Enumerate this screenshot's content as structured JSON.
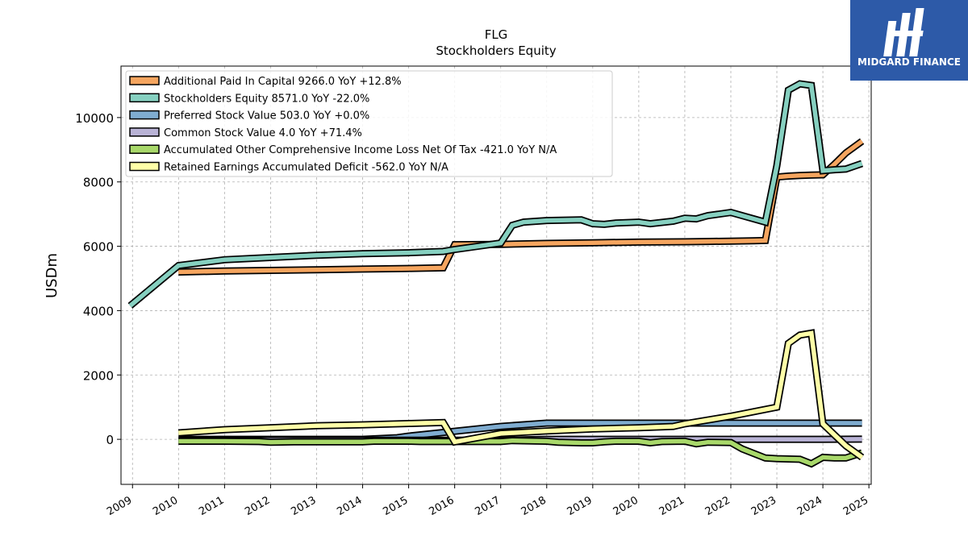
{
  "brand": {
    "name": "MIDGARD FINANCE",
    "color": "#2d5aa8"
  },
  "chart_data": {
    "type": "line",
    "title": "FLG",
    "subtitle": "Stockholders  Equity",
    "ylabel": "USDm",
    "xlabel": "",
    "ylim": [
      -1400,
      11600
    ],
    "xlim": [
      2008.75,
      2025.05
    ],
    "yticks": [
      0,
      2000,
      4000,
      6000,
      8000,
      10000
    ],
    "xticks": [
      "2009",
      "2010",
      "2011",
      "2012",
      "2013",
      "2014",
      "2015",
      "2016",
      "2017",
      "2018",
      "2019",
      "2020",
      "2021",
      "2022",
      "2023",
      "2024",
      "2025"
    ],
    "grid": true,
    "legend_position": "top-left",
    "series": [
      {
        "name": "Additional Paid In Capital  9266.0 YoY +12.8%",
        "color": "#f5a55f",
        "points": [
          [
            2010.0,
            5200
          ],
          [
            2011.0,
            5230
          ],
          [
            2012.0,
            5250
          ],
          [
            2013.0,
            5270
          ],
          [
            2014.0,
            5290
          ],
          [
            2015.0,
            5310
          ],
          [
            2015.75,
            5330
          ],
          [
            2016.0,
            6050
          ],
          [
            2017.0,
            6060
          ],
          [
            2018.0,
            6090
          ],
          [
            2019.0,
            6110
          ],
          [
            2020.0,
            6130
          ],
          [
            2021.0,
            6140
          ],
          [
            2021.5,
            6150
          ],
          [
            2022.0,
            6160
          ],
          [
            2022.5,
            6170
          ],
          [
            2022.75,
            6180
          ],
          [
            2023.0,
            8150
          ],
          [
            2023.25,
            8180
          ],
          [
            2023.5,
            8200
          ],
          [
            2023.75,
            8210
          ],
          [
            2024.0,
            8220
          ],
          [
            2024.25,
            8550
          ],
          [
            2024.5,
            8900
          ],
          [
            2024.85,
            9266
          ]
        ]
      },
      {
        "name": "Stockholders Equity  8571.0 YoY -22.0%",
        "color": "#86d0c0",
        "points": [
          [
            2008.95,
            4150
          ],
          [
            2010.0,
            5400
          ],
          [
            2011.0,
            5580
          ],
          [
            2012.0,
            5650
          ],
          [
            2013.0,
            5720
          ],
          [
            2014.0,
            5770
          ],
          [
            2015.0,
            5800
          ],
          [
            2015.75,
            5840
          ],
          [
            2016.0,
            5900
          ],
          [
            2016.5,
            6000
          ],
          [
            2017.0,
            6100
          ],
          [
            2017.25,
            6650
          ],
          [
            2017.5,
            6750
          ],
          [
            2018.0,
            6800
          ],
          [
            2018.75,
            6820
          ],
          [
            2019.0,
            6700
          ],
          [
            2019.25,
            6680
          ],
          [
            2019.5,
            6720
          ],
          [
            2020.0,
            6750
          ],
          [
            2020.25,
            6700
          ],
          [
            2020.75,
            6780
          ],
          [
            2021.0,
            6870
          ],
          [
            2021.25,
            6850
          ],
          [
            2021.5,
            6950
          ],
          [
            2022.0,
            7050
          ],
          [
            2022.25,
            6950
          ],
          [
            2022.75,
            6750
          ],
          [
            2023.0,
            8500
          ],
          [
            2023.25,
            10850
          ],
          [
            2023.5,
            11050
          ],
          [
            2023.75,
            11000
          ],
          [
            2024.0,
            8350
          ],
          [
            2024.25,
            8380
          ],
          [
            2024.5,
            8400
          ],
          [
            2024.85,
            8571
          ]
        ]
      },
      {
        "name": "Preferred Stock Value  503.0 YoY +0.0%",
        "color": "#7facd0",
        "points": [
          [
            2010.0,
            0
          ],
          [
            2011.0,
            0
          ],
          [
            2012.0,
            0
          ],
          [
            2013.0,
            0
          ],
          [
            2014.0,
            0
          ],
          [
            2014.75,
            50
          ],
          [
            2015.0,
            100
          ],
          [
            2016.0,
            250
          ],
          [
            2017.0,
            400
          ],
          [
            2018.0,
            503
          ],
          [
            2019.0,
            503
          ],
          [
            2020.0,
            503
          ],
          [
            2021.0,
            503
          ],
          [
            2022.0,
            503
          ],
          [
            2023.0,
            503
          ],
          [
            2024.0,
            503
          ],
          [
            2024.85,
            503
          ]
        ]
      },
      {
        "name": "Common Stock Value  4.0 YoY +71.4%",
        "color": "#b9b3d6",
        "points": [
          [
            2010.0,
            -30
          ],
          [
            2011.0,
            -30
          ],
          [
            2012.0,
            -30
          ],
          [
            2013.0,
            -30
          ],
          [
            2014.0,
            -30
          ],
          [
            2015.0,
            -30
          ],
          [
            2016.0,
            -30
          ],
          [
            2017.0,
            -30
          ],
          [
            2018.0,
            0
          ],
          [
            2019.0,
            0
          ],
          [
            2020.0,
            0
          ],
          [
            2021.0,
            0
          ],
          [
            2022.0,
            0
          ],
          [
            2023.0,
            0
          ],
          [
            2024.0,
            0
          ],
          [
            2024.85,
            4
          ]
        ]
      },
      {
        "name": "Accumulated Other Comprehensive Income Loss Net Of Tax  -421.0 YoY N/A",
        "color": "#a8d86a",
        "points": [
          [
            2010.0,
            -60
          ],
          [
            2011.0,
            -60
          ],
          [
            2011.75,
            -70
          ],
          [
            2012.0,
            -90
          ],
          [
            2012.5,
            -80
          ],
          [
            2013.0,
            -80
          ],
          [
            2014.0,
            -80
          ],
          [
            2014.25,
            -60
          ],
          [
            2015.0,
            -60
          ],
          [
            2015.25,
            -70
          ],
          [
            2016.0,
            -70
          ],
          [
            2017.0,
            -70
          ],
          [
            2017.25,
            -40
          ],
          [
            2018.0,
            -60
          ],
          [
            2018.25,
            -90
          ],
          [
            2018.75,
            -110
          ],
          [
            2019.0,
            -110
          ],
          [
            2019.25,
            -80
          ],
          [
            2019.5,
            -60
          ],
          [
            2020.0,
            -60
          ],
          [
            2020.25,
            -110
          ],
          [
            2020.5,
            -70
          ],
          [
            2021.0,
            -60
          ],
          [
            2021.25,
            -140
          ],
          [
            2021.5,
            -90
          ],
          [
            2022.0,
            -100
          ],
          [
            2022.25,
            -300
          ],
          [
            2022.75,
            -580
          ],
          [
            2023.0,
            -600
          ],
          [
            2023.25,
            -610
          ],
          [
            2023.5,
            -620
          ],
          [
            2023.75,
            -760
          ],
          [
            2024.0,
            -560
          ],
          [
            2024.25,
            -580
          ],
          [
            2024.5,
            -580
          ],
          [
            2024.85,
            -421
          ]
        ]
      },
      {
        "name": "Retained Earnings Accumulated Deficit  -562.0 YoY N/A",
        "color": "#ffffa8",
        "points": [
          [
            2010.0,
            200
          ],
          [
            2011.0,
            300
          ],
          [
            2012.0,
            360
          ],
          [
            2013.0,
            420
          ],
          [
            2014.0,
            450
          ],
          [
            2015.0,
            490
          ],
          [
            2015.75,
            520
          ],
          [
            2016.0,
            -80
          ],
          [
            2017.0,
            180
          ],
          [
            2018.0,
            260
          ],
          [
            2019.0,
            320
          ],
          [
            2020.0,
            360
          ],
          [
            2020.75,
            400
          ],
          [
            2021.0,
            480
          ],
          [
            2022.0,
            720
          ],
          [
            2022.5,
            860
          ],
          [
            2023.0,
            1000
          ],
          [
            2023.25,
            2980
          ],
          [
            2023.5,
            3240
          ],
          [
            2023.75,
            3300
          ],
          [
            2024.0,
            480
          ],
          [
            2024.5,
            -200
          ],
          [
            2024.85,
            -562
          ]
        ]
      }
    ]
  }
}
